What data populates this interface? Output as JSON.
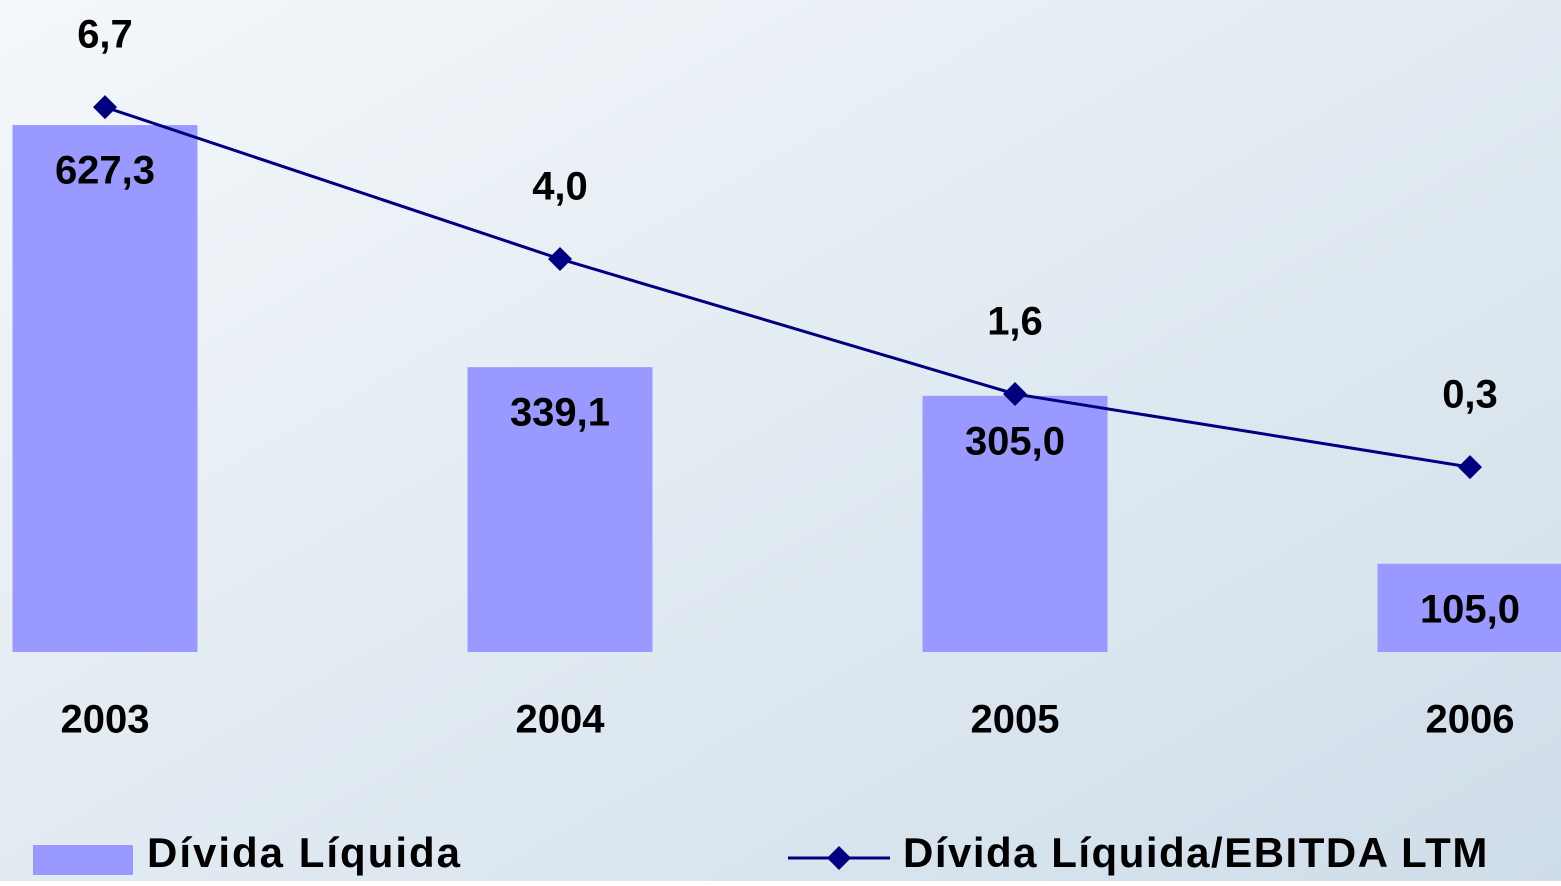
{
  "chart_data": {
    "type": "bar",
    "categories": [
      "2003",
      "2004",
      "2005",
      "2006"
    ],
    "series": [
      {
        "name": "Dívida Líquida",
        "type": "bar",
        "color": "#9999ff",
        "values": [
          627.3,
          339.1,
          305.0,
          105.0
        ],
        "value_labels": [
          "627,3",
          "339,1",
          "305,0",
          "105,0"
        ]
      },
      {
        "name": "Dívida Líquida/EBITDA LTM",
        "type": "line",
        "axis": "y2",
        "color": "#000080",
        "values": [
          6.7,
          4.0,
          1.6,
          0.3
        ],
        "value_labels": [
          "6,7",
          "4,0",
          "1,6",
          "0,3"
        ]
      }
    ]
  }
}
